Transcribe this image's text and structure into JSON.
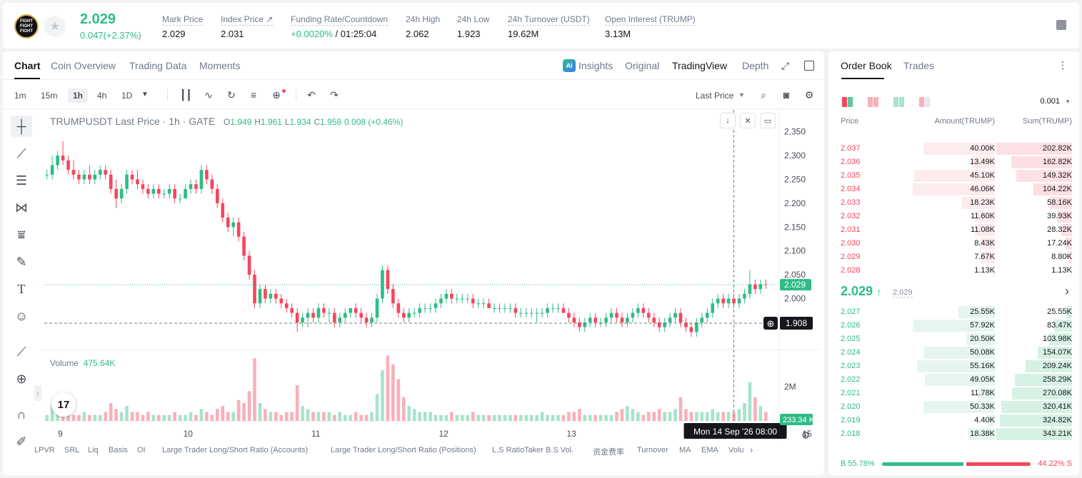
{
  "ticker": {
    "logo_text": "FIGHT FIGHT FIGHT",
    "last_price": "2.029",
    "change": "0.047(+2.37%)",
    "stats": [
      {
        "label": "Mark Price",
        "value": "2.029"
      },
      {
        "label": "Index Price ↗",
        "value": "2.031"
      },
      {
        "label": "Funding Rate/Countdown",
        "value_green": "+0.0020%",
        "value_rest": " / 01:25:04"
      },
      {
        "label": "24h High",
        "value": "2.062"
      },
      {
        "label": "24h Low",
        "value": "1.923"
      },
      {
        "label": "24h Turnover (USDT)",
        "value": "19.62M"
      },
      {
        "label": "Open Interest (TRUMP)",
        "value": "3.13M"
      }
    ]
  },
  "chart_tabs": [
    "Chart",
    "Coin Overview",
    "Trading Data",
    "Moments"
  ],
  "view_tabs": {
    "ai_badge": "AI",
    "insights": "Insights",
    "original": "Original",
    "tradingview": "TradingView",
    "depth": "Depth"
  },
  "intervals": [
    "1m",
    "15m",
    "1h",
    "4h",
    "1D"
  ],
  "price_type": "Last Price",
  "ohlc": {
    "symbol": "TRUMPUSDT Last Price · 1h · GATE",
    "o_label": "O",
    "o": "1.949",
    "h_label": "H",
    "h": "1.961",
    "l_label": "L",
    "l": "1.934",
    "c_label": "C",
    "c": "1.958",
    "change": "0.008 (+0.46%)"
  },
  "volume": {
    "label": "Volume",
    "value": "475.64K",
    "axis_label": "2M",
    "last_tag": "233.34 K"
  },
  "price_axis": [
    "2.350",
    "2.300",
    "2.250",
    "2.200",
    "2.150",
    "2.100",
    "2.050",
    "2.000",
    "1.950"
  ],
  "current_price_tag": "2.029",
  "crosshair_price_tag": "1.908",
  "crosshair_time": "Mon 14 Sep '26   08:00",
  "x_axis": [
    "9",
    "10",
    "11",
    "12",
    "13",
    "15"
  ],
  "indicators": [
    "LPVR",
    "SRL",
    "Liq",
    "Basis",
    "OI",
    "Large Trader Long/Short Ratio (Accounts)",
    "Large Trader Long/Short Ratio (Positions)",
    "L.S Ratio",
    "Taker B.S Vol.",
    "资金费率",
    "Turnover",
    "MA",
    "EMA",
    "Volu"
  ],
  "chart_data": {
    "type": "candlestick",
    "x_labels": [
      "9",
      "10",
      "11",
      "12",
      "13",
      "14",
      "15"
    ],
    "ylim": [
      1.92,
      2.36
    ],
    "current_price": 2.029,
    "candles_per_day": 24,
    "candles": [
      [
        2.26,
        2.27,
        2.25,
        2.26
      ],
      [
        2.26,
        2.3,
        2.25,
        2.28
      ],
      [
        2.28,
        2.31,
        2.27,
        2.3
      ],
      [
        2.3,
        2.33,
        2.28,
        2.29
      ],
      [
        2.29,
        2.3,
        2.26,
        2.27
      ],
      [
        2.27,
        2.29,
        2.25,
        2.26
      ],
      [
        2.26,
        2.27,
        2.24,
        2.25
      ],
      [
        2.25,
        2.27,
        2.24,
        2.26
      ],
      [
        2.26,
        2.28,
        2.24,
        2.25
      ],
      [
        2.25,
        2.27,
        2.24,
        2.26
      ],
      [
        2.26,
        2.28,
        2.25,
        2.27
      ],
      [
        2.27,
        2.28,
        2.25,
        2.26
      ],
      [
        2.26,
        2.27,
        2.22,
        2.23
      ],
      [
        2.23,
        2.25,
        2.19,
        2.21
      ],
      [
        2.21,
        2.24,
        2.2,
        2.23
      ],
      [
        2.23,
        2.27,
        2.22,
        2.26
      ],
      [
        2.26,
        2.27,
        2.24,
        2.25
      ],
      [
        2.25,
        2.27,
        2.23,
        2.24
      ],
      [
        2.24,
        2.25,
        2.22,
        2.23
      ],
      [
        2.23,
        2.24,
        2.21,
        2.22
      ],
      [
        2.22,
        2.24,
        2.21,
        2.23
      ],
      [
        2.23,
        2.24,
        2.21,
        2.22
      ],
      [
        2.22,
        2.23,
        2.21,
        2.22
      ],
      [
        2.22,
        2.24,
        2.21,
        2.23
      ],
      [
        2.23,
        2.24,
        2.2,
        2.21
      ],
      [
        2.21,
        2.22,
        2.2,
        2.21
      ],
      [
        2.21,
        2.24,
        2.21,
        2.23
      ],
      [
        2.23,
        2.25,
        2.22,
        2.24
      ],
      [
        2.24,
        2.25,
        2.22,
        2.23
      ],
      [
        2.23,
        2.28,
        2.22,
        2.27
      ],
      [
        2.27,
        2.28,
        2.24,
        2.25
      ],
      [
        2.25,
        2.26,
        2.22,
        2.23
      ],
      [
        2.23,
        2.24,
        2.19,
        2.2
      ],
      [
        2.2,
        2.21,
        2.16,
        2.17
      ],
      [
        2.17,
        2.18,
        2.14,
        2.15
      ],
      [
        2.15,
        2.17,
        2.13,
        2.16
      ],
      [
        2.16,
        2.17,
        2.12,
        2.13
      ],
      [
        2.13,
        2.14,
        2.08,
        2.09
      ],
      [
        2.09,
        2.1,
        2.04,
        2.05
      ],
      [
        2.05,
        2.06,
        1.98,
        1.99
      ],
      [
        1.99,
        2.03,
        1.98,
        2.02
      ],
      [
        2.02,
        2.03,
        1.99,
        2.0
      ],
      [
        2.0,
        2.02,
        1.99,
        2.01
      ],
      [
        2.01,
        2.02,
        1.99,
        2.0
      ],
      [
        2.0,
        2.01,
        1.98,
        1.99
      ],
      [
        1.99,
        2.0,
        1.97,
        1.98
      ],
      [
        1.98,
        1.99,
        1.96,
        1.97
      ],
      [
        1.97,
        1.98,
        1.93,
        1.95
      ],
      [
        1.95,
        1.97,
        1.94,
        1.96
      ],
      [
        1.96,
        1.98,
        1.94,
        1.97
      ],
      [
        1.97,
        1.98,
        1.95,
        1.96
      ],
      [
        1.96,
        1.99,
        1.95,
        1.98
      ],
      [
        1.98,
        1.99,
        1.96,
        1.97
      ],
      [
        1.97,
        1.98,
        1.95,
        1.97
      ],
      [
        1.97,
        1.98,
        1.94,
        1.95
      ],
      [
        1.95,
        1.97,
        1.94,
        1.96
      ],
      [
        1.96,
        1.98,
        1.95,
        1.97
      ],
      [
        1.97,
        1.98,
        1.96,
        1.98
      ],
      [
        1.98,
        1.99,
        1.96,
        1.97
      ],
      [
        1.97,
        1.98,
        1.95,
        1.96
      ],
      [
        1.96,
        1.97,
        1.94,
        1.95
      ],
      [
        1.95,
        1.97,
        1.94,
        1.96
      ],
      [
        1.96,
        2.01,
        1.95,
        2.0
      ],
      [
        2.0,
        2.07,
        1.99,
        2.06
      ],
      [
        2.06,
        2.07,
        2.01,
        2.02
      ],
      [
        2.02,
        2.03,
        1.98,
        1.99
      ],
      [
        1.99,
        2.0,
        1.96,
        1.97
      ],
      [
        1.97,
        1.98,
        1.95,
        1.96
      ],
      [
        1.96,
        1.98,
        1.95,
        1.97
      ],
      [
        1.97,
        1.98,
        1.96,
        1.97
      ],
      [
        1.97,
        1.99,
        1.96,
        1.98
      ],
      [
        1.98,
        1.99,
        1.97,
        1.98
      ],
      [
        1.98,
        1.99,
        1.97,
        1.98
      ],
      [
        1.98,
        2.0,
        1.97,
        1.99
      ],
      [
        1.99,
        2.01,
        1.98,
        2.0
      ],
      [
        2.0,
        2.02,
        1.99,
        2.01
      ],
      [
        2.01,
        2.02,
        1.99,
        2.0
      ],
      [
        2.0,
        2.01,
        1.99,
        2.0
      ],
      [
        2.0,
        2.01,
        1.99,
        2.0
      ],
      [
        2.0,
        2.01,
        1.99,
        2.0
      ],
      [
        2.0,
        2.01,
        1.98,
        1.99
      ],
      [
        1.99,
        2.0,
        1.98,
        1.99
      ],
      [
        1.99,
        2.0,
        1.98,
        1.99
      ],
      [
        1.99,
        2.0,
        1.98,
        1.98
      ],
      [
        1.98,
        1.99,
        1.97,
        1.98
      ],
      [
        1.98,
        1.99,
        1.97,
        1.98
      ],
      [
        1.98,
        1.99,
        1.97,
        1.98
      ],
      [
        1.98,
        1.99,
        1.97,
        1.98
      ],
      [
        1.98,
        1.99,
        1.96,
        1.97
      ],
      [
        1.97,
        1.98,
        1.96,
        1.97
      ],
      [
        1.97,
        1.98,
        1.96,
        1.97
      ],
      [
        1.97,
        1.98,
        1.96,
        1.97
      ],
      [
        1.97,
        1.98,
        1.95,
        1.97
      ],
      [
        1.97,
        1.98,
        1.96,
        1.97
      ],
      [
        1.97,
        1.99,
        1.96,
        1.98
      ],
      [
        1.98,
        1.99,
        1.97,
        1.98
      ],
      [
        1.98,
        1.99,
        1.97,
        1.98
      ],
      [
        1.98,
        1.99,
        1.97,
        1.97
      ],
      [
        1.97,
        1.98,
        1.95,
        1.96
      ],
      [
        1.96,
        1.97,
        1.94,
        1.95
      ],
      [
        1.95,
        1.96,
        1.93,
        1.94
      ],
      [
        1.94,
        1.96,
        1.93,
        1.95
      ],
      [
        1.95,
        1.97,
        1.94,
        1.96
      ],
      [
        1.96,
        1.97,
        1.94,
        1.95
      ],
      [
        1.95,
        1.96,
        1.94,
        1.95
      ],
      [
        1.95,
        1.97,
        1.94,
        1.96
      ],
      [
        1.96,
        1.98,
        1.95,
        1.97
      ],
      [
        1.97,
        1.98,
        1.95,
        1.96
      ],
      [
        1.96,
        1.97,
        1.94,
        1.95
      ],
      [
        1.95,
        1.97,
        1.94,
        1.96
      ],
      [
        1.96,
        1.98,
        1.95,
        1.97
      ],
      [
        1.97,
        1.99,
        1.96,
        1.98
      ],
      [
        1.98,
        1.99,
        1.96,
        1.97
      ],
      [
        1.97,
        1.98,
        1.95,
        1.96
      ],
      [
        1.96,
        1.97,
        1.94,
        1.95
      ],
      [
        1.95,
        1.96,
        1.93,
        1.94
      ],
      [
        1.94,
        1.96,
        1.93,
        1.95
      ],
      [
        1.95,
        1.97,
        1.94,
        1.96
      ],
      [
        1.96,
        1.98,
        1.95,
        1.97
      ],
      [
        1.97,
        1.98,
        1.94,
        1.95
      ],
      [
        1.95,
        1.96,
        1.93,
        1.94
      ],
      [
        1.94,
        1.95,
        1.92,
        1.93
      ],
      [
        1.93,
        1.96,
        1.92,
        1.95
      ],
      [
        1.95,
        1.97,
        1.94,
        1.96
      ],
      [
        1.96,
        1.98,
        1.95,
        1.97
      ],
      [
        1.97,
        2.0,
        1.96,
        1.99
      ],
      [
        1.99,
        2.01,
        1.98,
        2.0
      ],
      [
        2.0,
        2.01,
        1.98,
        1.99
      ],
      [
        1.99,
        2.01,
        1.98,
        2.0
      ],
      [
        2.0,
        2.01,
        1.98,
        1.99
      ],
      [
        1.99,
        2.01,
        1.98,
        2.0
      ],
      [
        2.0,
        2.02,
        1.99,
        2.01
      ],
      [
        2.01,
        2.06,
        2.0,
        2.03
      ],
      [
        2.03,
        2.04,
        2.01,
        2.02
      ],
      [
        2.02,
        2.04,
        2.01,
        2.03
      ],
      [
        2.03,
        2.04,
        2.02,
        2.029
      ]
    ],
    "volumes": [
      0.2,
      0.5,
      0.4,
      0.3,
      0.2,
      0.2,
      0.2,
      0.3,
      0.2,
      0.2,
      0.2,
      0.3,
      0.6,
      0.4,
      0.3,
      0.5,
      0.3,
      0.3,
      0.2,
      0.3,
      0.2,
      0.2,
      0.2,
      0.2,
      0.3,
      0.2,
      0.2,
      0.3,
      0.2,
      0.4,
      0.3,
      0.2,
      0.4,
      0.5,
      0.3,
      0.3,
      0.7,
      0.6,
      1.0,
      2.1,
      0.6,
      0.4,
      0.3,
      0.3,
      0.2,
      0.3,
      0.3,
      1.2,
      0.5,
      0.4,
      0.3,
      0.3,
      0.3,
      0.3,
      0.2,
      0.3,
      0.2,
      0.2,
      0.3,
      0.2,
      0.2,
      0.3,
      0.9,
      1.7,
      2.2,
      1.9,
      1.4,
      0.8,
      0.5,
      0.4,
      0.3,
      0.3,
      0.3,
      0.2,
      0.2,
      0.2,
      0.3,
      0.2,
      0.2,
      0.2,
      0.3,
      0.2,
      0.2,
      0.2,
      0.2,
      0.2,
      0.2,
      0.2,
      0.2,
      0.2,
      0.2,
      0.2,
      0.2,
      0.3,
      0.2,
      0.2,
      0.2,
      0.2,
      0.3,
      0.3,
      0.4,
      0.2,
      0.2,
      0.2,
      0.2,
      0.2,
      0.2,
      0.3,
      0.4,
      0.5,
      0.4,
      0.3,
      0.2,
      0.3,
      0.3,
      0.4,
      0.3,
      0.3,
      0.4,
      0.8,
      0.4,
      0.3,
      0.3,
      0.3,
      0.3,
      0.4,
      0.3,
      0.3,
      0.3,
      0.3,
      0.4,
      0.6,
      1.3,
      0.8,
      0.5,
      0.3
    ]
  },
  "orderbook": {
    "tabs": [
      "Order Book",
      "Trades"
    ],
    "precision": "0.001",
    "headers": {
      "price": "Price",
      "amount": "Amount(TRUMP)",
      "sum": "Sum(TRUMP)"
    },
    "asks": [
      {
        "price": "2.037",
        "amount": "40.00K",
        "sum": "202.82K",
        "amt_frac": 0.87,
        "sum_frac": 1.0
      },
      {
        "price": "2.036",
        "amount": "13.49K",
        "sum": "162.82K",
        "amt_frac": 0.29,
        "sum_frac": 0.8
      },
      {
        "price": "2.035",
        "amount": "45.10K",
        "sum": "149.32K",
        "amt_frac": 0.98,
        "sum_frac": 0.74
      },
      {
        "price": "2.034",
        "amount": "46.06K",
        "sum": "104.22K",
        "amt_frac": 1.0,
        "sum_frac": 0.51
      },
      {
        "price": "2.033",
        "amount": "18.23K",
        "sum": "58.16K",
        "amt_frac": 0.4,
        "sum_frac": 0.29
      },
      {
        "price": "2.032",
        "amount": "11.60K",
        "sum": "39.93K",
        "amt_frac": 0.25,
        "sum_frac": 0.2
      },
      {
        "price": "2.031",
        "amount": "11.08K",
        "sum": "28.32K",
        "amt_frac": 0.24,
        "sum_frac": 0.14
      },
      {
        "price": "2.030",
        "amount": "8.43K",
        "sum": "17.24K",
        "amt_frac": 0.18,
        "sum_frac": 0.085
      },
      {
        "price": "2.029",
        "amount": "7.67K",
        "sum": "8.80K",
        "amt_frac": 0.17,
        "sum_frac": 0.043
      },
      {
        "price": "2.028",
        "amount": "1.13K",
        "sum": "1.13K",
        "amt_frac": 0.025,
        "sum_frac": 0.006
      }
    ],
    "mid": {
      "price": "2.029",
      "arrow": "↑",
      "mark": "2.029",
      "more": "›"
    },
    "bids": [
      {
        "price": "2.027",
        "amount": "25.55K",
        "sum": "25.55K",
        "amt_frac": 0.44,
        "sum_frac": 0.074
      },
      {
        "price": "2.026",
        "amount": "57.92K",
        "sum": "83.47K",
        "amt_frac": 1.0,
        "sum_frac": 0.24
      },
      {
        "price": "2.025",
        "amount": "20.50K",
        "sum": "103.98K",
        "amt_frac": 0.35,
        "sum_frac": 0.3
      },
      {
        "price": "2.024",
        "amount": "50.08K",
        "sum": "154.07K",
        "amt_frac": 0.86,
        "sum_frac": 0.45
      },
      {
        "price": "2.023",
        "amount": "55.16K",
        "sum": "209.24K",
        "amt_frac": 0.95,
        "sum_frac": 0.61
      },
      {
        "price": "2.022",
        "amount": "49.05K",
        "sum": "258.29K",
        "amt_frac": 0.85,
        "sum_frac": 0.75
      },
      {
        "price": "2.021",
        "amount": "11.78K",
        "sum": "270.08K",
        "amt_frac": 0.2,
        "sum_frac": 0.79
      },
      {
        "price": "2.020",
        "amount": "50.33K",
        "sum": "320.41K",
        "amt_frac": 0.87,
        "sum_frac": 0.93
      },
      {
        "price": "2.019",
        "amount": "4.40K",
        "sum": "324.82K",
        "amt_frac": 0.08,
        "sum_frac": 0.95
      },
      {
        "price": "2.018",
        "amount": "18.38K",
        "sum": "343.21K",
        "amt_frac": 0.32,
        "sum_frac": 1.0
      }
    ],
    "buy_ratio": "B 55.78%",
    "sell_ratio": "44.22% S",
    "buy_frac": 0.5578
  },
  "colors": {
    "up": "#2ebd85",
    "down": "#f6465d",
    "up_vol": "#a8e3cb",
    "down_vol": "#f8b0ba"
  }
}
